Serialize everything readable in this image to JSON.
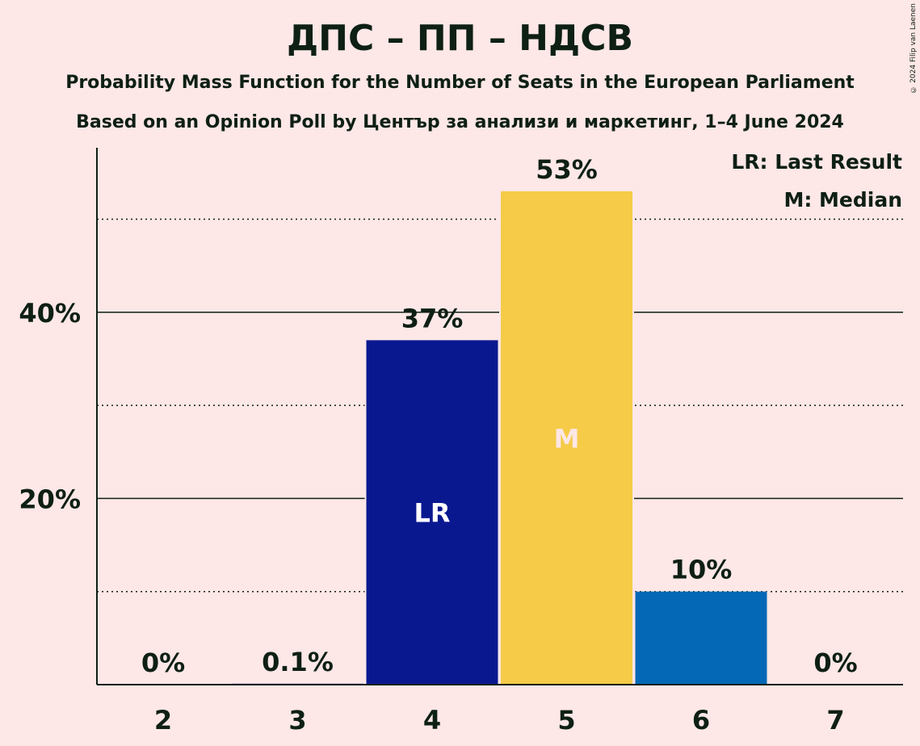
{
  "title": "ДПС – ПП – НДСВ",
  "subtitle1": "Probability Mass Function for the Number of Seats in the European Parliament",
  "subtitle2": "Based on an Opinion Poll by Център за анализи и маркетинг, 1–4 June 2024",
  "copyright": "© 2024 Filip van Laenen",
  "legend": {
    "last_result": "LR: Last Result",
    "median": "M: Median"
  },
  "chart_data": {
    "type": "bar",
    "categories": [
      "2",
      "3",
      "4",
      "5",
      "6",
      "7"
    ],
    "values": [
      0,
      0.1,
      37,
      53,
      10,
      0
    ],
    "data_labels": [
      "0%",
      "0.1%",
      "37%",
      "53%",
      "10%",
      "0%"
    ],
    "bar_colors": [
      "#0a1890",
      "#0a1890",
      "#0a1890",
      "#f5cb48",
      "#0468b6",
      "#0a1890"
    ],
    "bar_markers": [
      "",
      "",
      "LR",
      "M",
      "",
      ""
    ],
    "marker_colors": [
      "",
      "",
      "#ffffff",
      "#fde7e7",
      "",
      ""
    ],
    "ylim": [
      0,
      58
    ],
    "yticks": [
      {
        "value": 20,
        "label": "20%"
      },
      {
        "value": 40,
        "label": "40%"
      }
    ],
    "minor_gridlines": [
      10,
      30,
      50
    ],
    "legend_placement": "top-right"
  }
}
